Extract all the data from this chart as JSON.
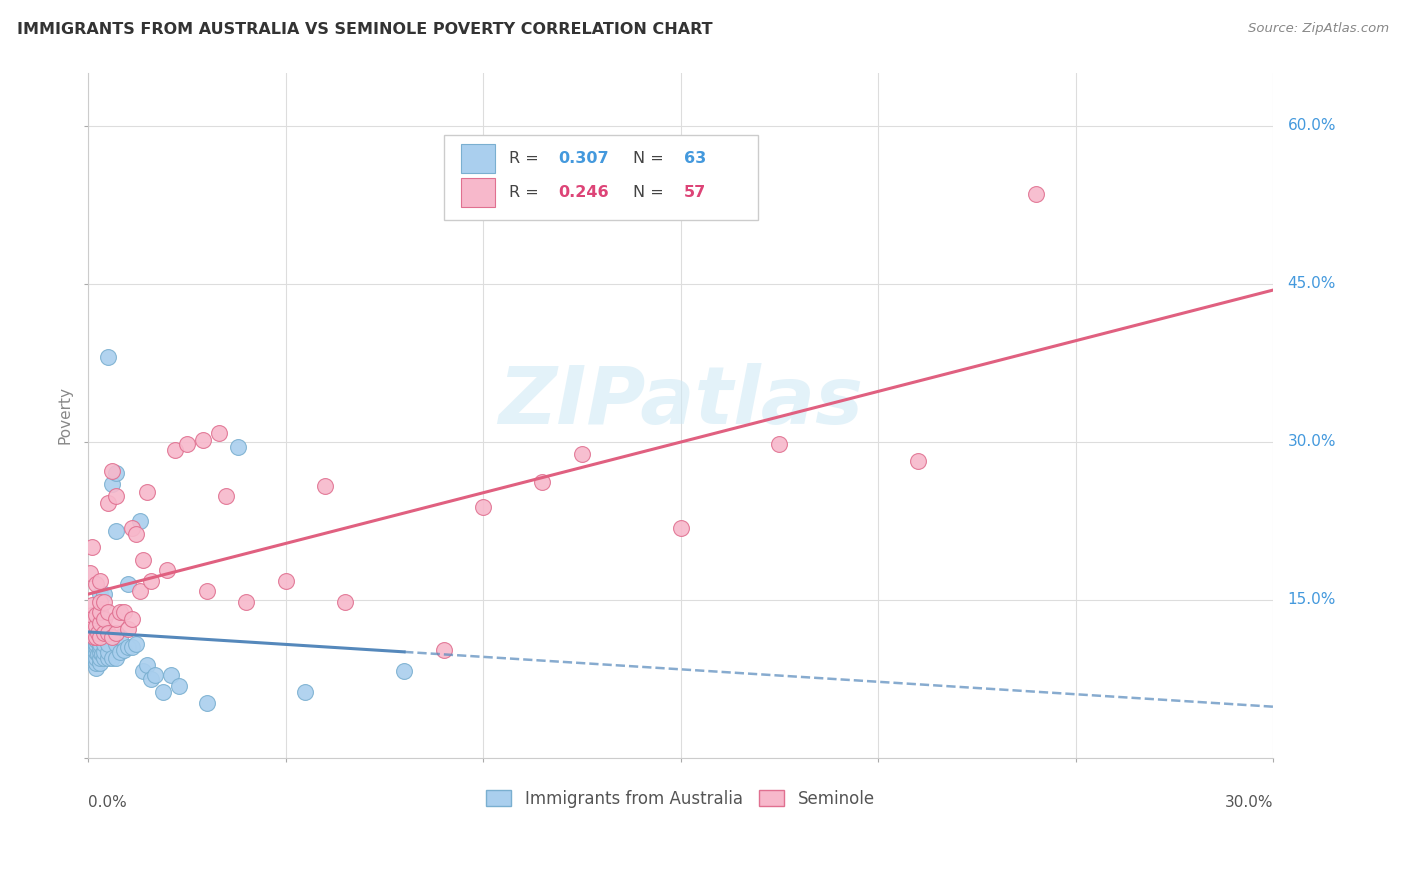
{
  "title": "IMMIGRANTS FROM AUSTRALIA VS SEMINOLE POVERTY CORRELATION CHART",
  "source": "Source: ZipAtlas.com",
  "ylabel": "Poverty",
  "xlim": [
    0.0,
    0.3
  ],
  "ylim": [
    0.0,
    0.65
  ],
  "color_blue": "#aacfee",
  "color_pink": "#f7b8cb",
  "color_blue_edge": "#7aafd0",
  "color_pink_edge": "#e07090",
  "color_blue_line": "#5588bb",
  "color_pink_line": "#e06080",
  "color_blue_text": "#4499dd",
  "color_pink_text": "#dd4477",
  "watermark_text": "ZIPatlas",
  "legend_r1": "0.307",
  "legend_n1": "63",
  "legend_r2": "0.246",
  "legend_n2": "57",
  "australia_x": [
    0.0005,
    0.0008,
    0.001,
    0.001,
    0.001,
    0.001,
    0.001,
    0.001,
    0.001,
    0.001,
    0.001,
    0.0015,
    0.0015,
    0.002,
    0.002,
    0.002,
    0.002,
    0.002,
    0.002,
    0.002,
    0.0025,
    0.003,
    0.003,
    0.003,
    0.003,
    0.003,
    0.003,
    0.003,
    0.0035,
    0.004,
    0.004,
    0.004,
    0.004,
    0.004,
    0.005,
    0.005,
    0.005,
    0.005,
    0.006,
    0.006,
    0.007,
    0.007,
    0.007,
    0.007,
    0.008,
    0.008,
    0.009,
    0.01,
    0.01,
    0.011,
    0.012,
    0.013,
    0.014,
    0.015,
    0.016,
    0.017,
    0.019,
    0.021,
    0.023,
    0.03,
    0.038,
    0.055,
    0.08
  ],
  "australia_y": [
    0.1,
    0.105,
    0.095,
    0.1,
    0.105,
    0.108,
    0.11,
    0.112,
    0.115,
    0.118,
    0.12,
    0.095,
    0.102,
    0.085,
    0.09,
    0.095,
    0.1,
    0.105,
    0.108,
    0.112,
    0.098,
    0.09,
    0.095,
    0.1,
    0.105,
    0.108,
    0.115,
    0.155,
    0.098,
    0.095,
    0.1,
    0.108,
    0.115,
    0.155,
    0.095,
    0.1,
    0.108,
    0.38,
    0.095,
    0.26,
    0.095,
    0.108,
    0.215,
    0.27,
    0.1,
    0.115,
    0.102,
    0.105,
    0.165,
    0.105,
    0.108,
    0.225,
    0.082,
    0.088,
    0.075,
    0.078,
    0.062,
    0.078,
    0.068,
    0.052,
    0.295,
    0.062,
    0.082
  ],
  "seminole_x": [
    0.0005,
    0.001,
    0.001,
    0.001,
    0.001,
    0.001,
    0.0015,
    0.002,
    0.002,
    0.002,
    0.002,
    0.0025,
    0.003,
    0.003,
    0.003,
    0.003,
    0.003,
    0.004,
    0.004,
    0.004,
    0.005,
    0.005,
    0.005,
    0.006,
    0.006,
    0.007,
    0.007,
    0.007,
    0.008,
    0.009,
    0.01,
    0.011,
    0.011,
    0.012,
    0.013,
    0.014,
    0.015,
    0.016,
    0.02,
    0.022,
    0.025,
    0.029,
    0.03,
    0.033,
    0.035,
    0.04,
    0.05,
    0.06,
    0.065,
    0.09,
    0.1,
    0.115,
    0.125,
    0.15,
    0.175,
    0.21,
    0.24
  ],
  "seminole_y": [
    0.175,
    0.12,
    0.125,
    0.135,
    0.145,
    0.2,
    0.115,
    0.115,
    0.125,
    0.135,
    0.165,
    0.118,
    0.115,
    0.128,
    0.138,
    0.148,
    0.168,
    0.118,
    0.132,
    0.148,
    0.118,
    0.138,
    0.242,
    0.115,
    0.272,
    0.118,
    0.132,
    0.248,
    0.138,
    0.138,
    0.122,
    0.132,
    0.218,
    0.212,
    0.158,
    0.188,
    0.252,
    0.168,
    0.178,
    0.292,
    0.298,
    0.302,
    0.158,
    0.308,
    0.248,
    0.148,
    0.168,
    0.258,
    0.148,
    0.102,
    0.238,
    0.262,
    0.288,
    0.218,
    0.298,
    0.282,
    0.535
  ]
}
